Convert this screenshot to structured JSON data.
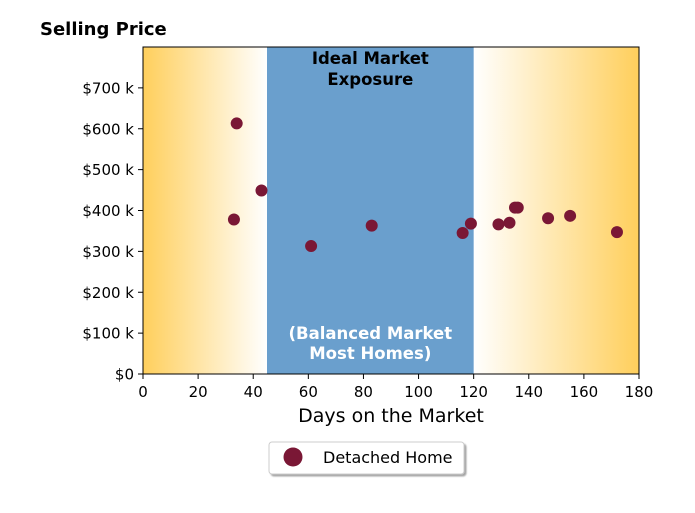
{
  "chart_data": {
    "type": "scatter",
    "title": "Selling Price",
    "xlabel": "Days on the Market",
    "ylabel": "",
    "xlim": [
      0,
      180
    ],
    "ylim": [
      0,
      800000
    ],
    "x_ticks": [
      0,
      20,
      40,
      60,
      80,
      100,
      120,
      140,
      160,
      180
    ],
    "y_ticks": [
      0,
      100000,
      200000,
      300000,
      400000,
      500000,
      600000,
      700000
    ],
    "y_tick_labels": [
      "$0",
      "$100 k",
      "$200 k",
      "$300 k",
      "$400 k",
      "$500 k",
      "$600 k",
      "$700 k"
    ],
    "grid": false,
    "series": [
      {
        "name": "Detached Home",
        "color": "#7a1735",
        "points": [
          {
            "x": 33,
            "y": 378000
          },
          {
            "x": 34,
            "y": 613000
          },
          {
            "x": 43,
            "y": 449000
          },
          {
            "x": 61,
            "y": 313000
          },
          {
            "x": 83,
            "y": 363000
          },
          {
            "x": 116,
            "y": 345000
          },
          {
            "x": 119,
            "y": 368000
          },
          {
            "x": 129,
            "y": 366000
          },
          {
            "x": 133,
            "y": 370000
          },
          {
            "x": 135,
            "y": 407000
          },
          {
            "x": 136,
            "y": 407000
          },
          {
            "x": 147,
            "y": 381000
          },
          {
            "x": 155,
            "y": 387000
          },
          {
            "x": 172,
            "y": 347000
          }
        ]
      }
    ],
    "bands": [
      {
        "x_start": 45,
        "x_end": 120,
        "color": "#6a9fcd",
        "top_label_lines": [
          "Ideal Market",
          "Exposure"
        ],
        "bottom_label_lines": [
          "(Balanced Market",
          "Most Homes)"
        ]
      }
    ],
    "background_gradient": {
      "edge_color": "#ffcf5c",
      "center_color": "#ffffff"
    },
    "legend": {
      "placement": "bottom-center",
      "entries": [
        "Detached Home"
      ]
    }
  }
}
